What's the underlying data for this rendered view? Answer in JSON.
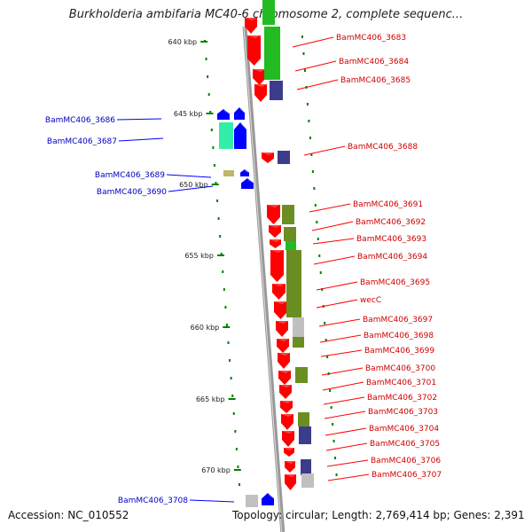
{
  "title": "Burkholderia ambifaria MC40-6 chromosome 2, complete sequenc...",
  "footer": {
    "accession": "Accession: NC_010552",
    "topology": "Topology: circular; Length: 2,769,414 bp; Genes: 2,391"
  },
  "scale_labels": [
    "640 kbp",
    "645 kbp",
    "650 kbp",
    "655 kbp",
    "660 kbp",
    "665 kbp",
    "670 kbp"
  ],
  "genes_forward": [
    "BamMC406_3683",
    "BamMC406_3684",
    "BamMC406_3685",
    "BamMC406_3688",
    "BamMC406_3691",
    "BamMC406_3692",
    "BamMC406_3693",
    "BamMC406_3694",
    "BamMC406_3695",
    "wecC",
    "BamMC406_3697",
    "BamMC406_3698",
    "BamMC406_3699",
    "BamMC406_3700",
    "BamMC406_3701",
    "BamMC406_3702",
    "BamMC406_3703",
    "BamMC406_3704",
    "BamMC406_3705",
    "BamMC406_3706",
    "BamMC406_3707"
  ],
  "genes_reverse": [
    "BamMC406_3686",
    "BamMC406_3687",
    "BamMC406_3689",
    "BamMC406_3690",
    "BamMC406_3708"
  ],
  "colors": {
    "forward_gene": "#ff0000",
    "reverse_gene": "#0000ff",
    "backbone": "#999999",
    "tick_mark": "#008000",
    "cog_green": "#22bb22",
    "cog_olive": "#6b8e23",
    "cog_navy": "#3c3c8c",
    "cog_teal": "#33eeaa",
    "cog_khaki": "#bdb76b",
    "cog_grey": "#c0c0c0"
  }
}
